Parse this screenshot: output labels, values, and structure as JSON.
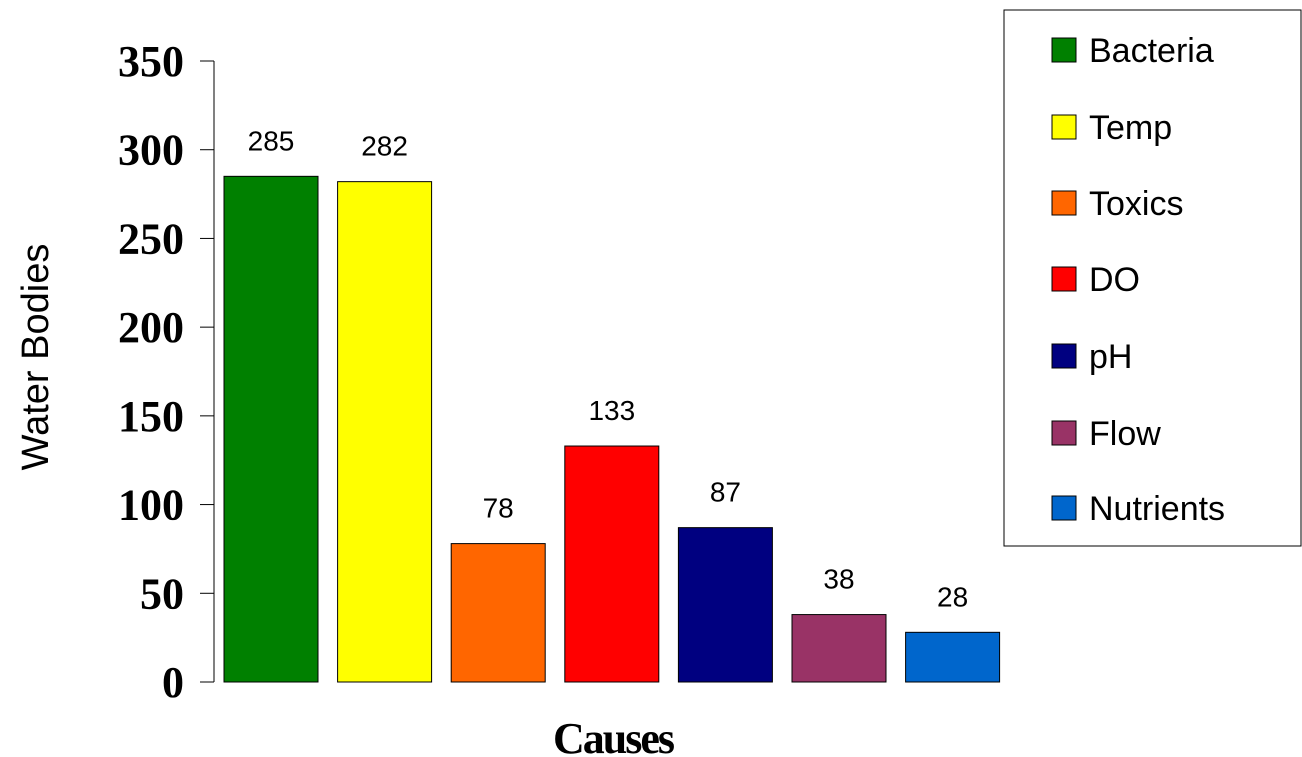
{
  "chart_data": {
    "type": "bar",
    "categories": [
      "Bacteria",
      "Temp",
      "Toxics",
      "DO",
      "pH",
      "Flow",
      "Nutrients"
    ],
    "values": [
      285,
      282,
      78,
      133,
      87,
      38,
      28
    ],
    "colors": [
      "#008000",
      "#ffff00",
      "#ff6600",
      "#ff0000",
      "#000080",
      "#993366",
      "#0066cc"
    ],
    "xlabel": "Causes",
    "ylabel": "Water Bodies",
    "ylim": [
      0,
      350
    ],
    "yticks": [
      0,
      50,
      100,
      150,
      200,
      250,
      300,
      350
    ],
    "data_labels": true,
    "legend": "right",
    "grid": false
  }
}
